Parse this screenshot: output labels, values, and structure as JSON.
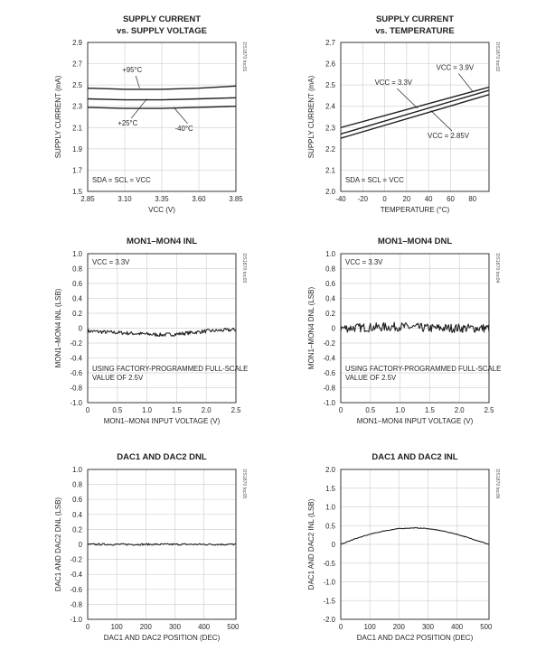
{
  "chart_data": [
    {
      "id": "c1",
      "type": "line",
      "title": "SUPPLY CURRENT",
      "subtitle": "vs. SUPPLY VOLTAGE",
      "xlabel": "VCC (V)",
      "ylabel": "SUPPLY CURRENT (mA)",
      "xlim": [
        2.85,
        3.85
      ],
      "ylim": [
        1.5,
        2.9
      ],
      "xticks": [
        2.85,
        3.1,
        3.35,
        3.6,
        3.85
      ],
      "xtick_labels": [
        "2.85",
        "3.10",
        "3.35",
        "3.60",
        "3.85"
      ],
      "yticks": [
        1.5,
        1.7,
        1.9,
        2.1,
        2.3,
        2.5,
        2.7,
        2.9
      ],
      "ytick_labels": [
        "1.5",
        "1.7",
        "1.9",
        "2.1",
        "2.3",
        "2.5",
        "2.7",
        "2.9"
      ],
      "grid": true,
      "legend": "none",
      "series": [
        {
          "name": "+95°C",
          "x": [
            2.85,
            3.1,
            3.35,
            3.6,
            3.85
          ],
          "y": [
            2.47,
            2.46,
            2.46,
            2.47,
            2.49
          ]
        },
        {
          "name": "+25°C",
          "x": [
            2.85,
            3.1,
            3.35,
            3.6,
            3.85
          ],
          "y": [
            2.37,
            2.36,
            2.36,
            2.37,
            2.38
          ]
        },
        {
          "name": "-40°C",
          "x": [
            2.85,
            3.1,
            3.35,
            3.6,
            3.85
          ],
          "y": [
            2.29,
            2.28,
            2.28,
            2.29,
            2.3
          ]
        }
      ],
      "annotations": [
        {
          "text": "+95°C",
          "x": 3.15,
          "y": 2.62,
          "tx": 3.2,
          "ty": 2.47
        },
        {
          "text": "+25°C",
          "x": 3.12,
          "y": 2.12,
          "tx": 3.25,
          "ty": 2.37
        },
        {
          "text": "-40°C",
          "x": 3.5,
          "y": 2.07,
          "tx": 3.43,
          "ty": 2.29
        }
      ],
      "note": "SDA = SCL = VCC",
      "code": "DS1870 toc01"
    },
    {
      "id": "c2",
      "type": "line",
      "title": "SUPPLY CURRENT",
      "subtitle": "vs. TEMPERATURE",
      "xlabel": "TEMPERATURE (°C)",
      "ylabel": "SUPPLY CURRENT (mA)",
      "xlim": [
        -40,
        95
      ],
      "ylim": [
        2.0,
        2.7
      ],
      "xticks": [
        -40,
        -20,
        0,
        20,
        40,
        60,
        80
      ],
      "xtick_labels": [
        "-40",
        "-20",
        "0",
        "20",
        "40",
        "60",
        "80"
      ],
      "yticks": [
        2.0,
        2.1,
        2.2,
        2.3,
        2.4,
        2.5,
        2.6,
        2.7
      ],
      "ytick_labels": [
        "2.0",
        "2.1",
        "2.2",
        "2.3",
        "2.4",
        "2.5",
        "2.6",
        "2.7"
      ],
      "grid": true,
      "legend": "none",
      "series": [
        {
          "name": "VCC = 3.9V",
          "x": [
            -40,
            95
          ],
          "y": [
            2.3,
            2.49
          ]
        },
        {
          "name": "VCC = 3.3V",
          "x": [
            -40,
            95
          ],
          "y": [
            2.27,
            2.475
          ]
        },
        {
          "name": "VCC = 2.85V",
          "x": [
            -40,
            95
          ],
          "y": [
            2.25,
            2.455
          ]
        }
      ],
      "annotations": [
        {
          "text": "VCC = 3.9V",
          "x": 64,
          "y": 2.57,
          "tx": 80,
          "ty": 2.47
        },
        {
          "text": "VCC = 3.3V",
          "x": 8,
          "y": 2.5,
          "tx": 30,
          "ty": 2.39
        },
        {
          "text": "VCC = 2.85V",
          "x": 58,
          "y": 2.25,
          "tx": 42,
          "ty": 2.38
        }
      ],
      "note": "SDA = SCL = VCC",
      "code": "DS1870 toc02"
    },
    {
      "id": "c3",
      "type": "line",
      "title": "MON1–MON4 INL",
      "subtitle": "",
      "xlabel": "MON1–MON4 INPUT VOLTAGE (V)",
      "ylabel": "MON1–MON4 INL (LSB)",
      "xlim": [
        0,
        2.5
      ],
      "ylim": [
        -1.0,
        1.0
      ],
      "xticks": [
        0,
        0.5,
        1.0,
        1.5,
        2.0,
        2.5
      ],
      "xtick_labels": [
        "0",
        "0.5",
        "1.0",
        "1.5",
        "2.0",
        "2.5"
      ],
      "yticks": [
        -1.0,
        -0.8,
        -0.6,
        -0.4,
        -0.2,
        0,
        0.2,
        0.4,
        0.6,
        0.8,
        1.0
      ],
      "ytick_labels": [
        "-1.0",
        "-0.8",
        "-0.6",
        "-0.4",
        "-0.2",
        "0",
        "0.2",
        "0.4",
        "0.6",
        "0.8",
        "1.0"
      ],
      "grid": true,
      "legend": "none",
      "series": [
        {
          "name": "",
          "x": [
            0,
            0.25,
            0.5,
            0.75,
            1.0,
            1.25,
            1.5,
            1.75,
            2.0,
            2.25,
            2.5
          ],
          "y": [
            -0.04,
            -0.05,
            -0.06,
            -0.07,
            -0.08,
            -0.09,
            -0.08,
            -0.06,
            -0.04,
            -0.03,
            -0.02
          ],
          "noise": 0.025
        }
      ],
      "note_lines": [
        "VCC = 3.3V",
        "USING FACTORY-PROGRAMMED FULL-SCALE",
        "VALUE OF 2.5V"
      ],
      "code": "DS1870 toc03"
    },
    {
      "id": "c4",
      "type": "line",
      "title": "MON1–MON4 DNL",
      "subtitle": "",
      "xlabel": "MON1–MON4 INPUT VOLTAGE (V)",
      "ylabel": "MON1–MON4 DNL (LSB)",
      "xlim": [
        0,
        2.5
      ],
      "ylim": [
        -1.0,
        1.0
      ],
      "xticks": [
        0,
        0.5,
        1.0,
        1.5,
        2.0,
        2.5
      ],
      "xtick_labels": [
        "0",
        "0.5",
        "1.0",
        "1.5",
        "2.0",
        "2.5"
      ],
      "yticks": [
        -1.0,
        -0.8,
        -0.6,
        -0.4,
        -0.2,
        0,
        0.2,
        0.4,
        0.6,
        0.8,
        1.0
      ],
      "ytick_labels": [
        "-1.0",
        "-0.8",
        "-0.6",
        "-0.4",
        "-0.2",
        "0",
        "0.2",
        "0.4",
        "0.6",
        "0.8",
        "1.0"
      ],
      "grid": true,
      "legend": "none",
      "series": [
        {
          "name": "",
          "x": [
            0,
            0.5,
            1.0,
            1.5,
            2.0,
            2.5
          ],
          "y": [
            0.0,
            0.01,
            0.02,
            0.0,
            0.0,
            0.0
          ],
          "noise": 0.06
        }
      ],
      "note_lines": [
        "VCC = 3.3V",
        "USING FACTORY-PROGRAMMED FULL-SCALE",
        "VALUE OF 2.5V"
      ],
      "code": "DS1870 toc04"
    },
    {
      "id": "c5",
      "type": "line",
      "title": "DAC1 AND DAC2 DNL",
      "subtitle": "",
      "xlabel": "DAC1 AND DAC2 POSITION (DEC)",
      "ylabel": "DAC1 AND DAC2 DNL (LSB)",
      "xlim": [
        0,
        510
      ],
      "ylim": [
        -1.0,
        1.0
      ],
      "xticks": [
        0,
        100,
        200,
        300,
        400,
        500
      ],
      "xtick_labels": [
        "0",
        "100",
        "200",
        "300",
        "400",
        "500"
      ],
      "yticks": [
        -1.0,
        -0.8,
        -0.6,
        -0.4,
        -0.2,
        0,
        0.2,
        0.4,
        0.6,
        0.8,
        1.0
      ],
      "ytick_labels": [
        "-1.0",
        "-0.8",
        "-0.6",
        "-0.4",
        "-0.2",
        "0",
        "0.2",
        "0.4",
        "0.6",
        "0.8",
        "1.0"
      ],
      "grid": true,
      "legend": "none",
      "series": [
        {
          "name": "",
          "x": [
            0,
            100,
            200,
            300,
            400,
            510
          ],
          "y": [
            0,
            0,
            0,
            0,
            0,
            0
          ],
          "noise": 0.012
        }
      ],
      "note_lines": [],
      "code": "DS1870 toc05"
    },
    {
      "id": "c6",
      "type": "line",
      "title": "DAC1 AND DAC2 INL",
      "subtitle": "",
      "xlabel": "DAC1 AND DAC2 POSITION (DEC)",
      "ylabel": "DAC1 AND DAC2 INL (LSB)",
      "xlim": [
        0,
        510
      ],
      "ylim": [
        -2.0,
        2.0
      ],
      "xticks": [
        0,
        100,
        200,
        300,
        400,
        500
      ],
      "xtick_labels": [
        "0",
        "100",
        "200",
        "300",
        "400",
        "500"
      ],
      "yticks": [
        -2.0,
        -1.5,
        -1.0,
        -0.5,
        0,
        0.5,
        1.0,
        1.5,
        2.0
      ],
      "ytick_labels": [
        "-2.0",
        "-1.5",
        "-1.0",
        "-0.5",
        "0",
        "0.5",
        "1.0",
        "1.5",
        "2.0"
      ],
      "grid": true,
      "legend": "none",
      "series": [
        {
          "name": "",
          "x": [
            0,
            50,
            100,
            150,
            200,
            255,
            300,
            350,
            400,
            450,
            510
          ],
          "y": [
            0.0,
            0.15,
            0.27,
            0.36,
            0.42,
            0.44,
            0.42,
            0.36,
            0.27,
            0.15,
            0.0
          ],
          "noise": 0.008
        }
      ],
      "note_lines": [],
      "code": "DS1870 toc06"
    }
  ]
}
